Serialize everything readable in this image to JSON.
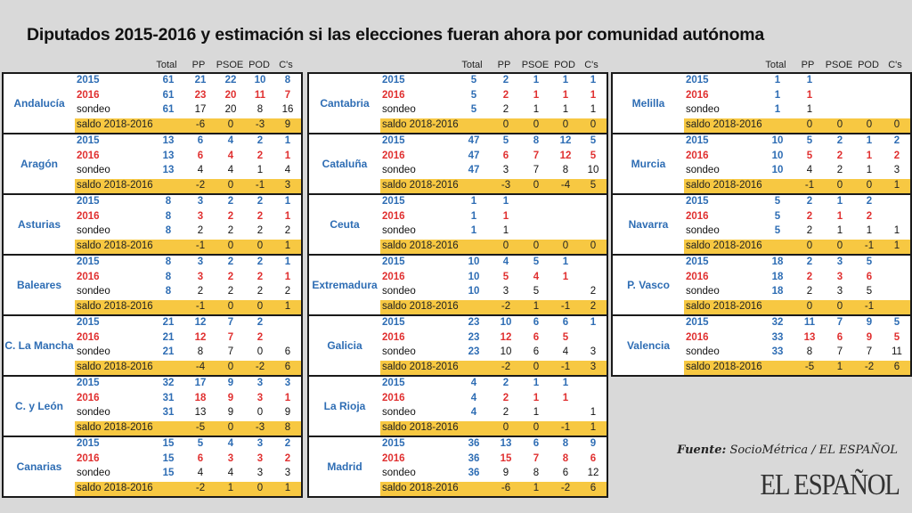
{
  "title": "Diputados 2015-2016 y estimación si las elecciones fueran ahora por comunidad autónoma",
  "headers": [
    "Total",
    "PP",
    "PSOE",
    "POD",
    "C's"
  ],
  "row_labels": {
    "r2015": "2015",
    "r2016": "2016",
    "rsondeo": "sondeo",
    "rsaldo": "saldo 2018-2016"
  },
  "colors": {
    "blue": "#2e6db4",
    "red": "#e03030",
    "saldo_bg": "#f7c842",
    "background": "#d9d9d9"
  },
  "columns": [
    [
      {
        "name": "Andalucía",
        "r2015": [
          "61",
          "21",
          "22",
          "10",
          "8"
        ],
        "r2016": [
          "61",
          "23",
          "20",
          "11",
          "7"
        ],
        "rsondeo": [
          "61",
          "17",
          "20",
          "8",
          "16"
        ],
        "rsaldo": [
          "",
          "-6",
          "0",
          "-3",
          "9"
        ]
      },
      {
        "name": "Aragón",
        "r2015": [
          "13",
          "6",
          "4",
          "2",
          "1"
        ],
        "r2016": [
          "13",
          "6",
          "4",
          "2",
          "1"
        ],
        "rsondeo": [
          "13",
          "4",
          "4",
          "1",
          "4"
        ],
        "rsaldo": [
          "",
          "-2",
          "0",
          "-1",
          "3"
        ]
      },
      {
        "name": "Asturias",
        "r2015": [
          "8",
          "3",
          "2",
          "2",
          "1"
        ],
        "r2016": [
          "8",
          "3",
          "2",
          "2",
          "1"
        ],
        "rsondeo": [
          "8",
          "2",
          "2",
          "2",
          "2"
        ],
        "rsaldo": [
          "",
          "-1",
          "0",
          "0",
          "1"
        ]
      },
      {
        "name": "Baleares",
        "r2015": [
          "8",
          "3",
          "2",
          "2",
          "1"
        ],
        "r2016": [
          "8",
          "3",
          "2",
          "2",
          "1"
        ],
        "rsondeo": [
          "8",
          "2",
          "2",
          "2",
          "2"
        ],
        "rsaldo": [
          "",
          "-1",
          "0",
          "0",
          "1"
        ]
      },
      {
        "name": "C. La Mancha",
        "r2015": [
          "21",
          "12",
          "7",
          "2",
          ""
        ],
        "r2016": [
          "21",
          "12",
          "7",
          "2",
          ""
        ],
        "rsondeo": [
          "21",
          "8",
          "7",
          "0",
          "6"
        ],
        "rsaldo": [
          "",
          "-4",
          "0",
          "-2",
          "6"
        ]
      },
      {
        "name": "C. y León",
        "r2015": [
          "32",
          "17",
          "9",
          "3",
          "3"
        ],
        "r2016": [
          "31",
          "18",
          "9",
          "3",
          "1"
        ],
        "rsondeo": [
          "31",
          "13",
          "9",
          "0",
          "9"
        ],
        "rsaldo": [
          "",
          "-5",
          "0",
          "-3",
          "8"
        ]
      },
      {
        "name": "Canarias",
        "r2015": [
          "15",
          "5",
          "4",
          "3",
          "2"
        ],
        "r2016": [
          "15",
          "6",
          "3",
          "3",
          "2"
        ],
        "rsondeo": [
          "15",
          "4",
          "4",
          "3",
          "3"
        ],
        "rsaldo": [
          "",
          "-2",
          "1",
          "0",
          "1"
        ]
      }
    ],
    [
      {
        "name": "Cantabria",
        "r2015": [
          "5",
          "2",
          "1",
          "1",
          "1"
        ],
        "r2016": [
          "5",
          "2",
          "1",
          "1",
          "1"
        ],
        "rsondeo": [
          "5",
          "2",
          "1",
          "1",
          "1"
        ],
        "rsaldo": [
          "",
          "0",
          "0",
          "0",
          "0"
        ]
      },
      {
        "name": "Cataluña",
        "r2015": [
          "47",
          "5",
          "8",
          "12",
          "5"
        ],
        "r2016": [
          "47",
          "6",
          "7",
          "12",
          "5"
        ],
        "rsondeo": [
          "47",
          "3",
          "7",
          "8",
          "10"
        ],
        "rsaldo": [
          "",
          "-3",
          "0",
          "-4",
          "5"
        ]
      },
      {
        "name": "Ceuta",
        "r2015": [
          "1",
          "1",
          "",
          "",
          ""
        ],
        "r2016": [
          "1",
          "1",
          "",
          "",
          ""
        ],
        "rsondeo": [
          "1",
          "1",
          "",
          "",
          ""
        ],
        "rsaldo": [
          "",
          "0",
          "0",
          "0",
          "0"
        ]
      },
      {
        "name": "Extremadura",
        "r2015": [
          "10",
          "4",
          "5",
          "1",
          ""
        ],
        "r2016": [
          "10",
          "5",
          "4",
          "1",
          ""
        ],
        "rsondeo": [
          "10",
          "3",
          "5",
          "",
          "2"
        ],
        "rsaldo": [
          "",
          "-2",
          "1",
          "-1",
          "2"
        ]
      },
      {
        "name": "Galicia",
        "r2015": [
          "23",
          "10",
          "6",
          "6",
          "1"
        ],
        "r2016": [
          "23",
          "12",
          "6",
          "5",
          ""
        ],
        "rsondeo": [
          "23",
          "10",
          "6",
          "4",
          "3"
        ],
        "rsaldo": [
          "",
          "-2",
          "0",
          "-1",
          "3"
        ]
      },
      {
        "name": "La Rioja",
        "r2015": [
          "4",
          "2",
          "1",
          "1",
          ""
        ],
        "r2016": [
          "4",
          "2",
          "1",
          "1",
          ""
        ],
        "rsondeo": [
          "4",
          "2",
          "1",
          "",
          "1"
        ],
        "rsaldo": [
          "",
          "0",
          "0",
          "-1",
          "1"
        ]
      },
      {
        "name": "Madrid",
        "r2015": [
          "36",
          "13",
          "6",
          "8",
          "9"
        ],
        "r2016": [
          "36",
          "15",
          "7",
          "8",
          "6"
        ],
        "rsondeo": [
          "36",
          "9",
          "8",
          "6",
          "12"
        ],
        "rsaldo": [
          "",
          "-6",
          "1",
          "-2",
          "6"
        ]
      }
    ],
    [
      {
        "name": "Melilla",
        "r2015": [
          "1",
          "1",
          "",
          "",
          ""
        ],
        "r2016": [
          "1",
          "1",
          "",
          "",
          ""
        ],
        "rsondeo": [
          "1",
          "1",
          "",
          "",
          ""
        ],
        "rsaldo": [
          "",
          "0",
          "0",
          "0",
          "0"
        ]
      },
      {
        "name": "Murcia",
        "r2015": [
          "10",
          "5",
          "2",
          "1",
          "2"
        ],
        "r2016": [
          "10",
          "5",
          "2",
          "1",
          "2"
        ],
        "rsondeo": [
          "10",
          "4",
          "2",
          "1",
          "3"
        ],
        "rsaldo": [
          "",
          "-1",
          "0",
          "0",
          "1"
        ]
      },
      {
        "name": "Navarra",
        "r2015": [
          "5",
          "2",
          "1",
          "2",
          ""
        ],
        "r2016": [
          "5",
          "2",
          "1",
          "2",
          ""
        ],
        "rsondeo": [
          "5",
          "2",
          "1",
          "1",
          "1"
        ],
        "rsaldo": [
          "",
          "0",
          "0",
          "-1",
          "1"
        ]
      },
      {
        "name": "P. Vasco",
        "r2015": [
          "18",
          "2",
          "3",
          "5",
          ""
        ],
        "r2016": [
          "18",
          "2",
          "3",
          "6",
          ""
        ],
        "rsondeo": [
          "18",
          "2",
          "3",
          "5",
          ""
        ],
        "rsaldo": [
          "",
          "0",
          "0",
          "-1",
          ""
        ]
      },
      {
        "name": "Valencia",
        "r2015": [
          "32",
          "11",
          "7",
          "9",
          "5"
        ],
        "r2016": [
          "33",
          "13",
          "6",
          "9",
          "5"
        ],
        "rsondeo": [
          "33",
          "8",
          "7",
          "7",
          "11"
        ],
        "rsaldo": [
          "",
          "-5",
          "1",
          "-2",
          "6"
        ]
      }
    ]
  ],
  "source": {
    "label": "Fuente:",
    "text": "SocioMétrica / EL ESPAÑOL"
  },
  "logo": "EL ESPAÑOL"
}
